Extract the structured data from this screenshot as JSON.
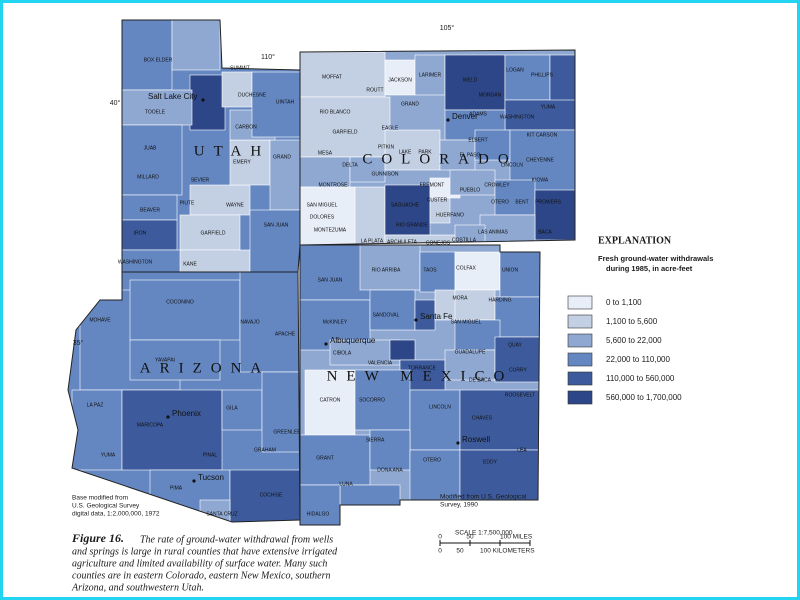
{
  "coordinates": [
    "110°",
    "105°",
    "40°",
    "35°"
  ],
  "states": [
    "UTAH",
    "COLORADO",
    "ARIZONA",
    "NEW MEXICO"
  ],
  "cities": [
    "Salt Lake City",
    "Denver",
    "Santa Fe",
    "Albuquerque",
    "Phoenix",
    "Tucson",
    "Roswell"
  ],
  "counties": [
    "BOX ELDER",
    "TOOELE",
    "JUAB",
    "MILLARD",
    "BEAVER",
    "IRON",
    "WASHINGTON",
    "KANE",
    "GARFIELD",
    "WAYNE",
    "PIUTE",
    "SEVIER",
    "EMERY",
    "GRAND",
    "CARBON",
    "DUCHESNE",
    "UINTAH",
    "SUMMIT",
    "SAN JUAN",
    "MOFFAT",
    "ROUTT",
    "JACKSON",
    "LARIMER",
    "WELD",
    "LOGAN",
    "PHILLIPS",
    "MORGAN",
    "RIO BLANCO",
    "GARFIELD",
    "EAGLE",
    "GRAND",
    "ADAMS",
    "WASHINGTON",
    "YUMA",
    "MESA",
    "DELTA",
    "PITKIN",
    "LAKE",
    "PARK",
    "ELBERT",
    "KIT CARSON",
    "LINCOLN",
    "CHEYENNE",
    "KIOWA",
    "MONTROSE",
    "GUNNISON",
    "EL PASO",
    "FREMONT",
    "PUEBLO",
    "CROWLEY",
    "OTERO",
    "BENT",
    "PROWERS",
    "BACA",
    "LAS ANIMAS",
    "HUERFANO",
    "CUSTER",
    "SAGUACHE",
    "SAN MIGUEL",
    "DOLORES",
    "MONTEZUMA",
    "LA PLATA",
    "ARCHULETA",
    "CONEJOS",
    "COSTILLA",
    "RIO GRANDE",
    "MOHAVE",
    "COCONINO",
    "NAVAJO",
    "APACHE",
    "YAVAPAI",
    "LA PAZ",
    "MARICOPA",
    "GILA",
    "GREENLEE",
    "GRAHAM",
    "PINAL",
    "YUMA",
    "PIMA",
    "SANTA CRUZ",
    "COCHISE",
    "SAN JUAN",
    "RIO ARRIBA",
    "TAOS",
    "COLFAX",
    "UNION",
    "MORA",
    "HARDING",
    "SAN MIGUEL",
    "SANDOVAL",
    "McKINLEY",
    "CIBOLA",
    "VALENCIA",
    "TORRANCE",
    "GUADALUPE",
    "QUAY",
    "CURRY",
    "DE BACA",
    "ROOSEVELT",
    "CATRON",
    "SOCORRO",
    "LINCOLN",
    "CHAVES",
    "SIERRA",
    "OTERO",
    "LEA",
    "EDDY",
    "GRANT",
    "LUNA",
    "DONA ANA",
    "HIDALGO"
  ],
  "legend": {
    "title": "EXPLANATION",
    "subtitle": [
      "Fresh ground-water withdrawals",
      "during 1985, in acre-feet"
    ],
    "items": [
      "0 to 1,100",
      "1,100 to 5,600",
      "5,600 to 22,000",
      "22,000 to 110,000",
      "110,000 to 560,000",
      "560,000 to 1,700,000"
    ],
    "colors": [
      "#e8eef8",
      "#c3d0e4",
      "#8ea8d2",
      "#6487c2",
      "#3d5b9c",
      "#2d4687"
    ]
  },
  "notes": {
    "base": [
      "Base modified from",
      "U.S. Geological Survey",
      "digital data, 1:2,000,000, 1972"
    ],
    "modified": [
      "Modified from U.S. Geological",
      "Survey, 1990"
    ]
  },
  "scale": {
    "title": "SCALE 1:7,500,000",
    "miles": [
      "0",
      "50",
      "100 MILES"
    ],
    "kilometers": [
      "0",
      "50",
      "100 KILOMETERS"
    ]
  },
  "caption": {
    "label": "Figure 16.",
    "lines": [
      "The rate of ground-water withdrawal from wells",
      "and springs is large in rural counties that have extensive irrigated",
      "agriculture and limited availability of surface water. Many such",
      "counties are in eastern Colorado, eastern New Mexico, southern",
      "Arizona, and southwestern Utah."
    ]
  }
}
